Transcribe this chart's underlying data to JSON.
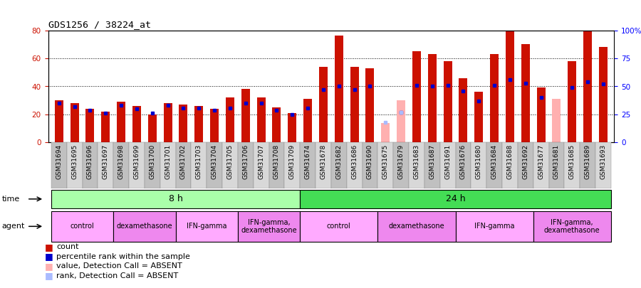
{
  "title": "GDS1256 / 38224_at",
  "samples": [
    "GSM31694",
    "GSM31695",
    "GSM31696",
    "GSM31697",
    "GSM31698",
    "GSM31699",
    "GSM31700",
    "GSM31701",
    "GSM31702",
    "GSM31703",
    "GSM31704",
    "GSM31705",
    "GSM31706",
    "GSM31707",
    "GSM31708",
    "GSM31709",
    "GSM31674",
    "GSM31678",
    "GSM31682",
    "GSM31686",
    "GSM31690",
    "GSM31675",
    "GSM31679",
    "GSM31683",
    "GSM31687",
    "GSM31691",
    "GSM31676",
    "GSM31680",
    "GSM31684",
    "GSM31688",
    "GSM31692",
    "GSM31677",
    "GSM31681",
    "GSM31685",
    "GSM31689",
    "GSM31693"
  ],
  "count_values": [
    30,
    28,
    24,
    22,
    29,
    26,
    20,
    28,
    27,
    26,
    24,
    32,
    38,
    32,
    25,
    21,
    31,
    54,
    76,
    54,
    53,
    null,
    null,
    65,
    63,
    58,
    46,
    36,
    63,
    89,
    70,
    39,
    null,
    58,
    85,
    68
  ],
  "rank_values": [
    35,
    32,
    29,
    26,
    33,
    30,
    26,
    33,
    31,
    31,
    29,
    31,
    35,
    35,
    29,
    25,
    31,
    47,
    50,
    47,
    50,
    null,
    27,
    51,
    50,
    51,
    46,
    37,
    51,
    56,
    53,
    40,
    null,
    49,
    54,
    52
  ],
  "absent_count": [
    null,
    null,
    null,
    null,
    null,
    null,
    null,
    null,
    null,
    null,
    null,
    null,
    null,
    null,
    null,
    null,
    null,
    null,
    null,
    null,
    null,
    14,
    30,
    null,
    null,
    null,
    null,
    null,
    null,
    null,
    null,
    null,
    31,
    null,
    null,
    null
  ],
  "absent_rank": [
    null,
    null,
    null,
    null,
    null,
    null,
    null,
    null,
    null,
    null,
    null,
    null,
    null,
    null,
    null,
    null,
    null,
    null,
    null,
    null,
    null,
    18,
    27,
    null,
    null,
    null,
    null,
    null,
    null,
    null,
    null,
    null,
    null,
    null,
    null,
    null
  ],
  "time_groups": [
    {
      "label": "8 h",
      "start": 0,
      "end": 16,
      "color": "#aaffaa"
    },
    {
      "label": "24 h",
      "start": 16,
      "end": 36,
      "color": "#44dd55"
    }
  ],
  "agent_groups": [
    {
      "label": "control",
      "start": 0,
      "end": 4,
      "color": "#ffaaff"
    },
    {
      "label": "dexamethasone",
      "start": 4,
      "end": 8,
      "color": "#ee88ee"
    },
    {
      "label": "IFN-gamma",
      "start": 8,
      "end": 12,
      "color": "#ffaaff"
    },
    {
      "label": "IFN-gamma,\ndexamethasone",
      "start": 12,
      "end": 16,
      "color": "#ee88ee"
    },
    {
      "label": "control",
      "start": 16,
      "end": 21,
      "color": "#ffaaff"
    },
    {
      "label": "dexamethasone",
      "start": 21,
      "end": 26,
      "color": "#ee88ee"
    },
    {
      "label": "IFN-gamma",
      "start": 26,
      "end": 31,
      "color": "#ffaaff"
    },
    {
      "label": "IFN-gamma,\ndexamethasone",
      "start": 31,
      "end": 36,
      "color": "#ee88ee"
    }
  ],
  "bar_color": "#cc1100",
  "rank_color": "#0000cc",
  "absent_bar_color": "#ffb0b0",
  "absent_rank_color": "#aabbff",
  "legend_items": [
    {
      "color": "#cc1100",
      "label": "count"
    },
    {
      "color": "#0000cc",
      "label": "percentile rank within the sample"
    },
    {
      "color": "#ffb0b0",
      "label": "value, Detection Call = ABSENT"
    },
    {
      "color": "#aabbff",
      "label": "rank, Detection Call = ABSENT"
    }
  ]
}
